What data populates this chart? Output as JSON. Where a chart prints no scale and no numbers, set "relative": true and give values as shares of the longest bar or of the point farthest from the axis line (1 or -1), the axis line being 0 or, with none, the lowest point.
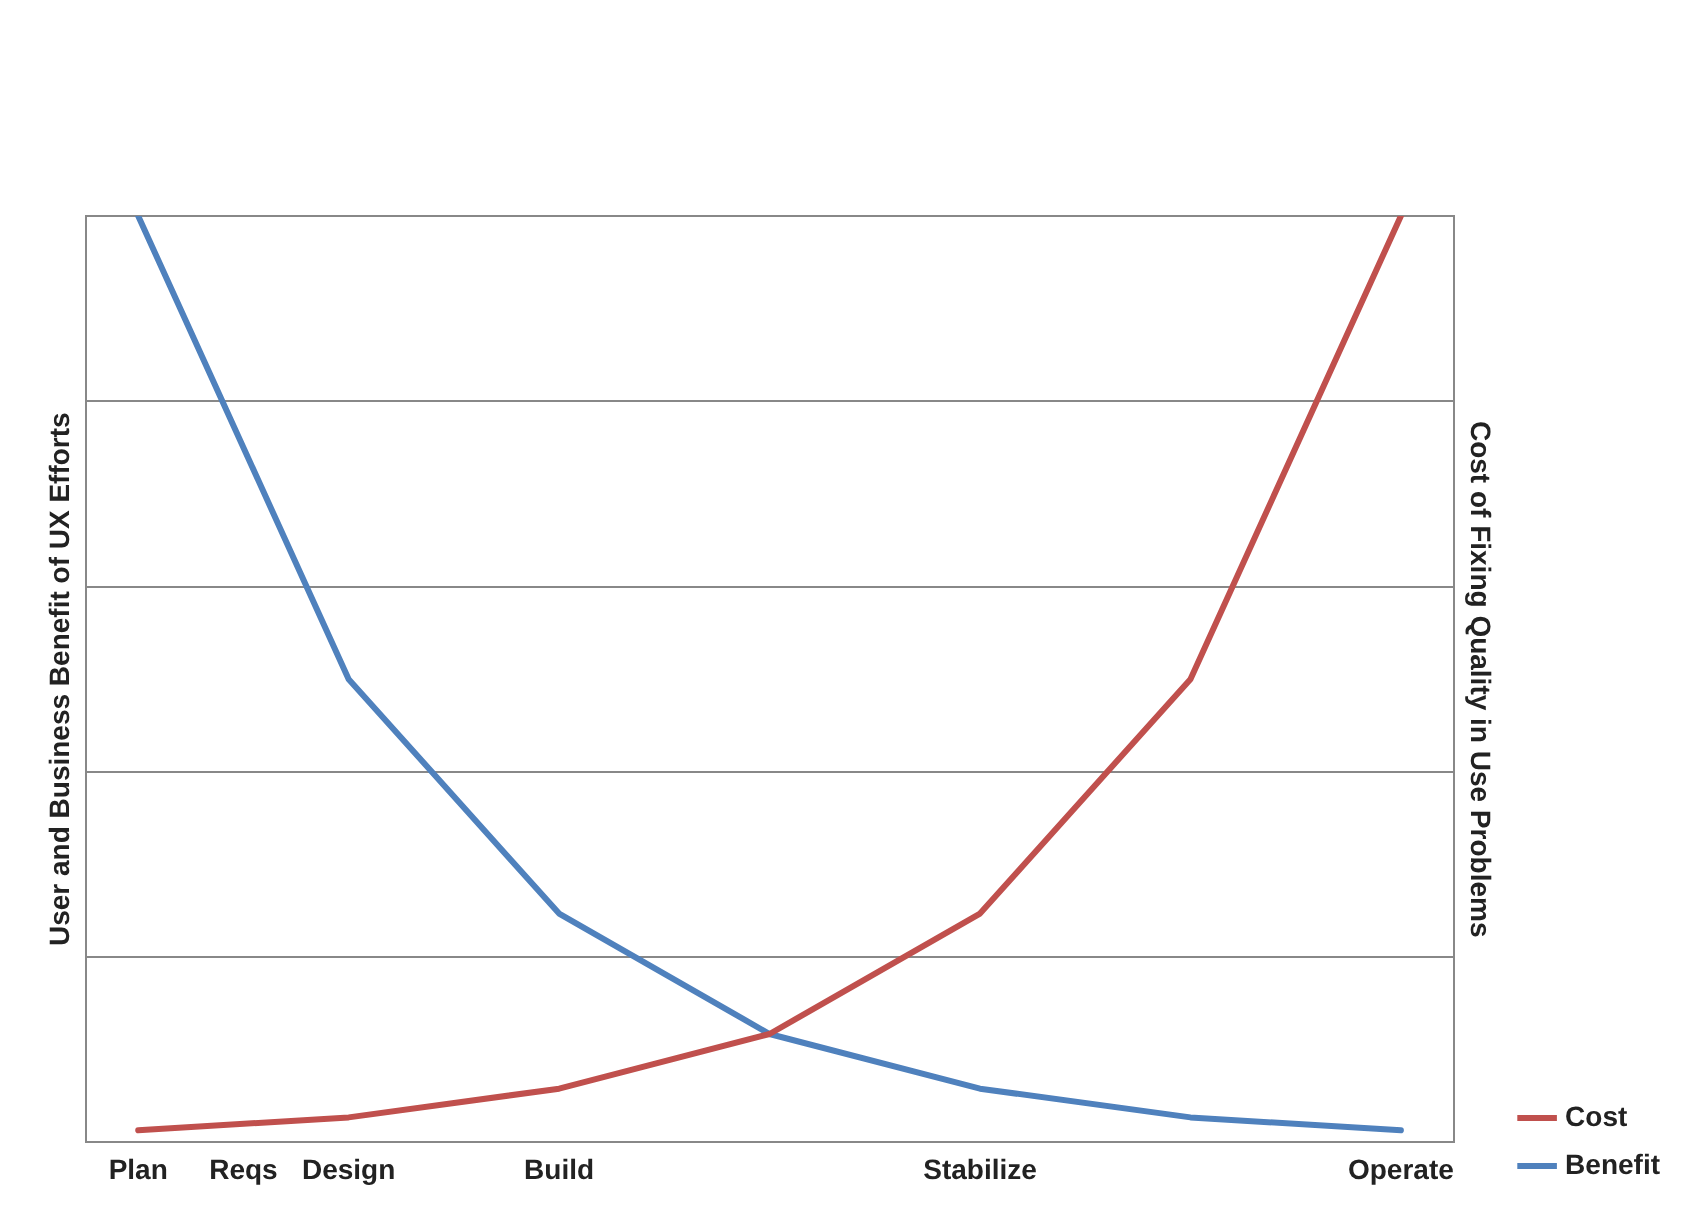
{
  "chart_data": {
    "type": "line",
    "relative": true,
    "ylabel": "User and Business Benefit of UX Efforts",
    "y2label": "Cost of Fixing Quality in Use Problems",
    "categories": [
      "Plan",
      "Reqs",
      "Design",
      null,
      "Build",
      null,
      null,
      null,
      "Stabilize",
      null,
      null,
      null,
      "Operate"
    ],
    "series": [
      {
        "name": "Cost",
        "color": "#c0504d",
        "values": [
          0.013,
          null,
          0.027,
          null,
          0.058,
          null,
          0.117,
          null,
          0.247,
          null,
          0.5,
          null,
          1
        ]
      },
      {
        "name": "Benefit",
        "color": "#4f81bd",
        "values": [
          1,
          null,
          0.5,
          null,
          0.247,
          null,
          0.117,
          null,
          0.058,
          null,
          0.027,
          null,
          0.013
        ]
      }
    ],
    "grid": "y",
    "legend": "bottom right",
    "marker": "none",
    "line_style": "solid"
  }
}
